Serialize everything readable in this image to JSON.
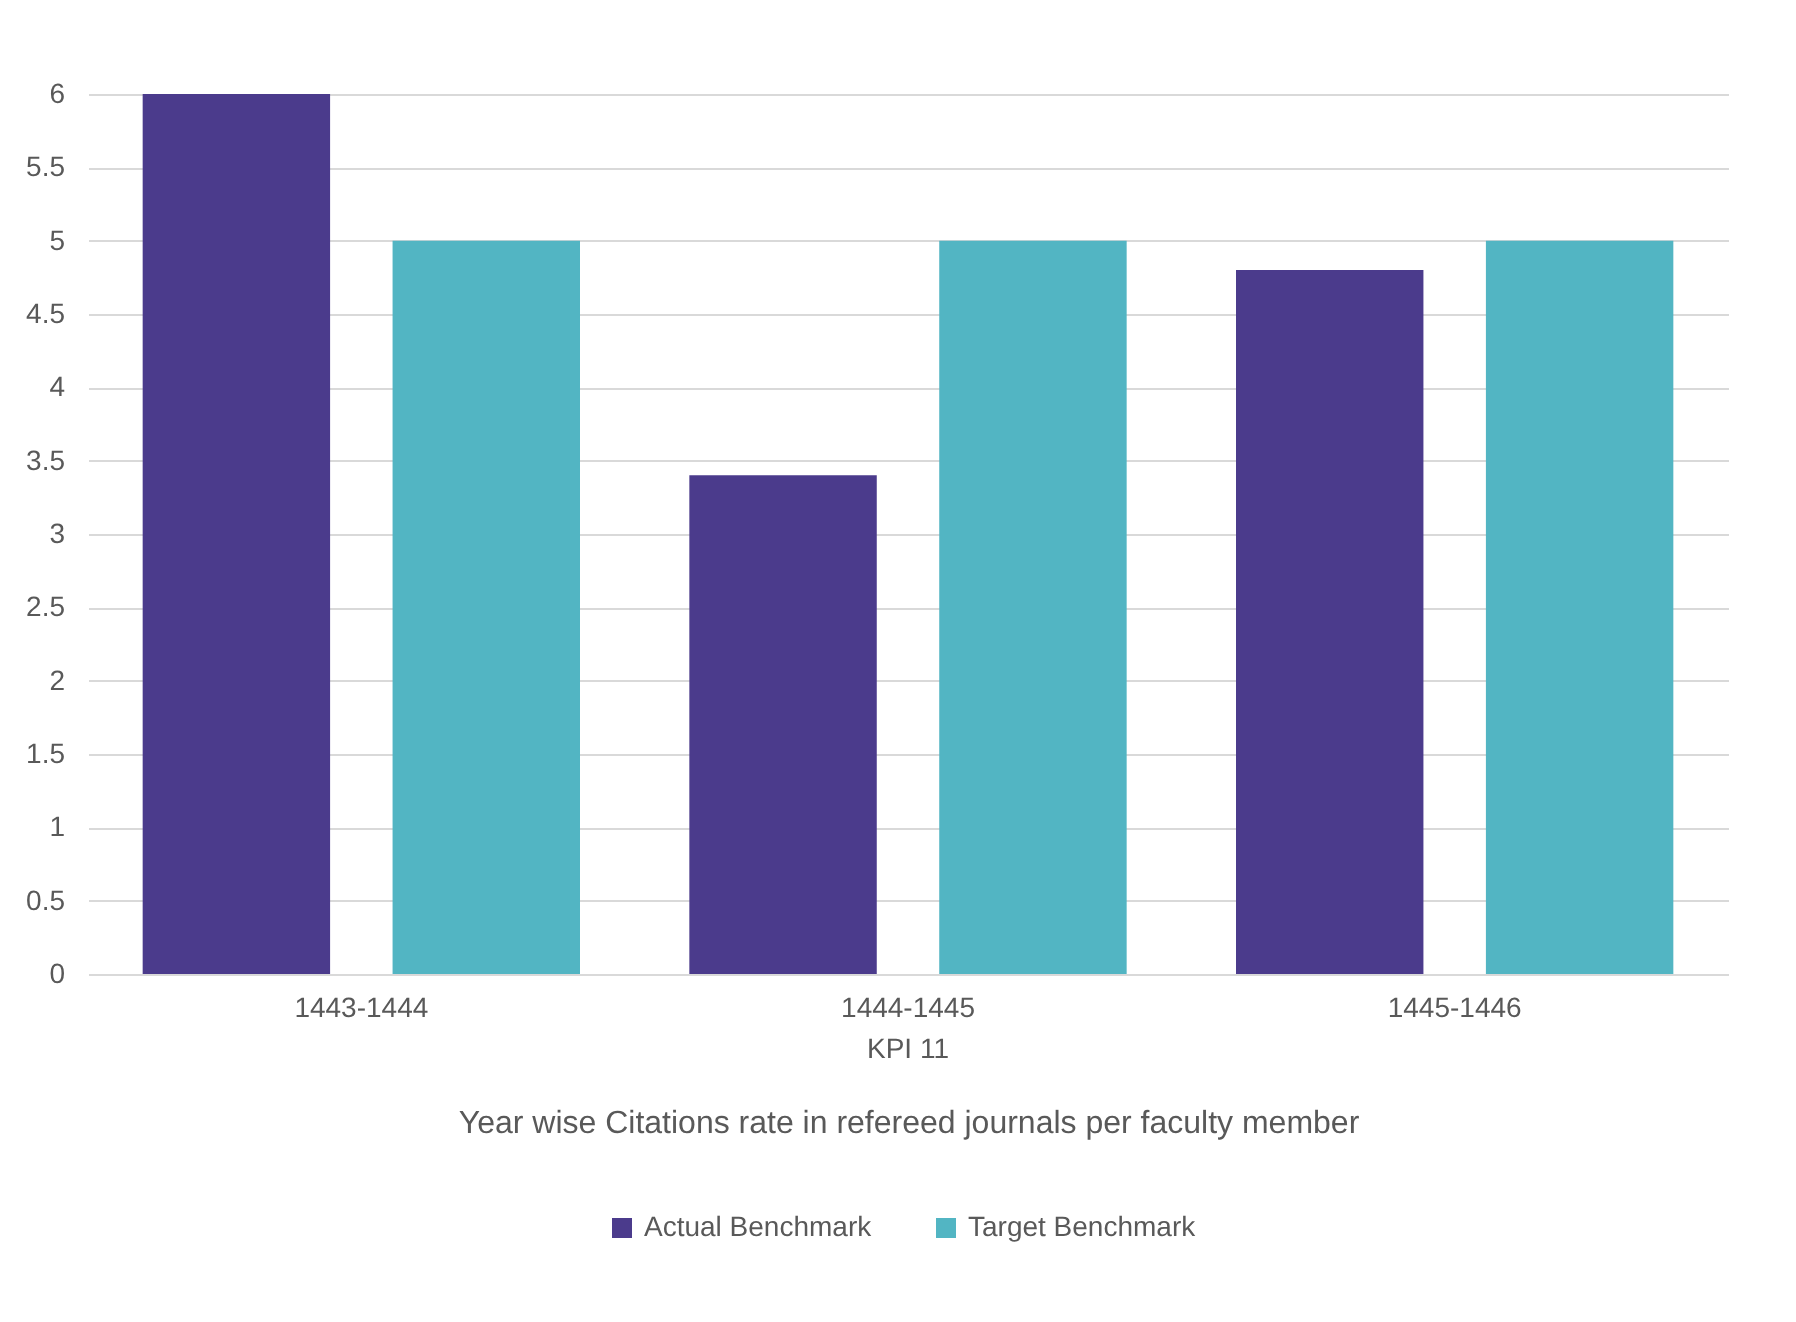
{
  "chart_data": {
    "type": "bar",
    "categories": [
      "1443-1444",
      "1444-1445",
      "1445-1446"
    ],
    "series": [
      {
        "name": "Actual Benchmark",
        "color": "#4b3b8c",
        "values": [
          6,
          3.4,
          4.8
        ]
      },
      {
        "name": "Target Benchmark",
        "color": "#52b5c3",
        "values": [
          5,
          5,
          5
        ]
      }
    ],
    "xlabel": "Year wise Citations rate in refereed journals per faculty member",
    "annotations": [
      "KPI 11"
    ],
    "ylim": [
      0,
      6
    ],
    "yticks": [
      0,
      0.5,
      1,
      1.5,
      2,
      2.5,
      3,
      3.5,
      4,
      4.5,
      5,
      5.5,
      6
    ],
    "grid": "y",
    "legend": "bottom"
  }
}
